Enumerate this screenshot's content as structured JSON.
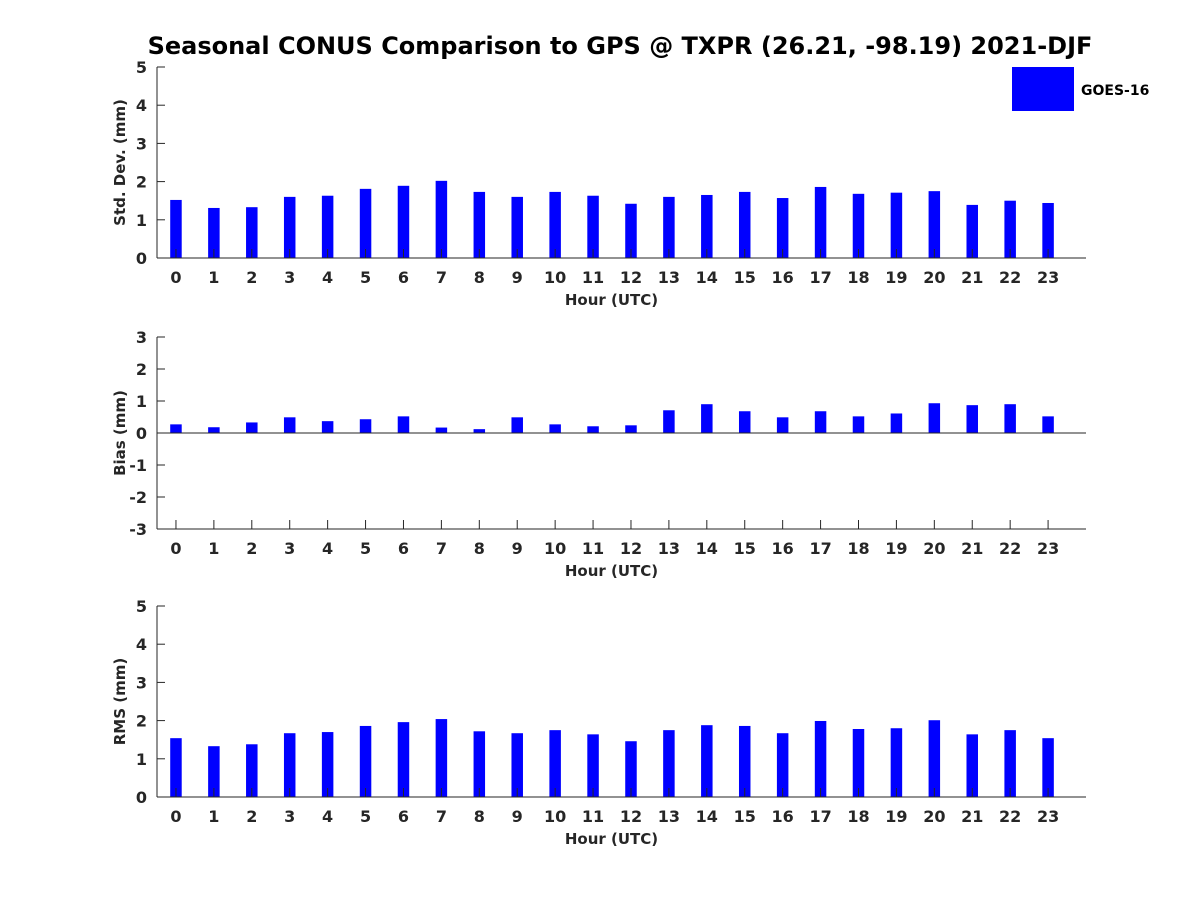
{
  "figure_title": "Seasonal CONUS Comparison to GPS @ TXPR (26.21, -98.19) 2021-DJF",
  "legend": {
    "label": "GOES-16",
    "color": "#0000ff"
  },
  "chart_data": [
    {
      "type": "bar",
      "name": "std-dev",
      "title": "Seasonal CONUS Comparison to GPS @ TXPR (26.21, -98.19) 2021-DJF",
      "xlabel": "Hour (UTC)",
      "ylabel": "Std. Dev. (mm)",
      "ylim": [
        0,
        5
      ],
      "yticks": [
        0,
        1,
        2,
        3,
        4,
        5
      ],
      "categories": [
        "0",
        "1",
        "2",
        "3",
        "4",
        "5",
        "6",
        "7",
        "8",
        "9",
        "10",
        "11",
        "12",
        "13",
        "14",
        "15",
        "16",
        "17",
        "18",
        "19",
        "20",
        "21",
        "22",
        "23"
      ],
      "series": [
        {
          "name": "GOES-16",
          "values": [
            1.52,
            1.31,
            1.33,
            1.6,
            1.63,
            1.81,
            1.89,
            2.02,
            1.73,
            1.6,
            1.73,
            1.63,
            1.42,
            1.6,
            1.65,
            1.73,
            1.57,
            1.86,
            1.68,
            1.71,
            1.75,
            1.39,
            1.5,
            1.44
          ]
        }
      ],
      "legend": "top-right"
    },
    {
      "type": "bar",
      "name": "bias",
      "xlabel": "Hour (UTC)",
      "ylabel": "Bias (mm)",
      "ylim": [
        -3,
        3
      ],
      "yticks": [
        -3,
        -2,
        -1,
        0,
        1,
        2,
        3
      ],
      "categories": [
        "0",
        "1",
        "2",
        "3",
        "4",
        "5",
        "6",
        "7",
        "8",
        "9",
        "10",
        "11",
        "12",
        "13",
        "14",
        "15",
        "16",
        "17",
        "18",
        "19",
        "20",
        "21",
        "22",
        "23"
      ],
      "series": [
        {
          "name": "GOES-16",
          "values": [
            0.27,
            0.18,
            0.33,
            0.49,
            0.37,
            0.43,
            0.52,
            0.17,
            0.12,
            0.49,
            0.27,
            0.21,
            0.24,
            0.71,
            0.9,
            0.68,
            0.49,
            0.68,
            0.52,
            0.61,
            0.93,
            0.87,
            0.9,
            0.52
          ]
        }
      ]
    },
    {
      "type": "bar",
      "name": "rms",
      "xlabel": "Hour (UTC)",
      "ylabel": "RMS (mm)",
      "ylim": [
        0,
        5
      ],
      "yticks": [
        0,
        1,
        2,
        3,
        4,
        5
      ],
      "categories": [
        "0",
        "1",
        "2",
        "3",
        "4",
        "5",
        "6",
        "7",
        "8",
        "9",
        "10",
        "11",
        "12",
        "13",
        "14",
        "15",
        "16",
        "17",
        "18",
        "19",
        "20",
        "21",
        "22",
        "23"
      ],
      "series": [
        {
          "name": "GOES-16",
          "values": [
            1.54,
            1.33,
            1.38,
            1.67,
            1.7,
            1.86,
            1.96,
            2.04,
            1.72,
            1.67,
            1.75,
            1.64,
            1.46,
            1.75,
            1.88,
            1.86,
            1.67,
            1.99,
            1.78,
            1.8,
            2.01,
            1.64,
            1.75,
            1.54
          ]
        }
      ]
    }
  ]
}
